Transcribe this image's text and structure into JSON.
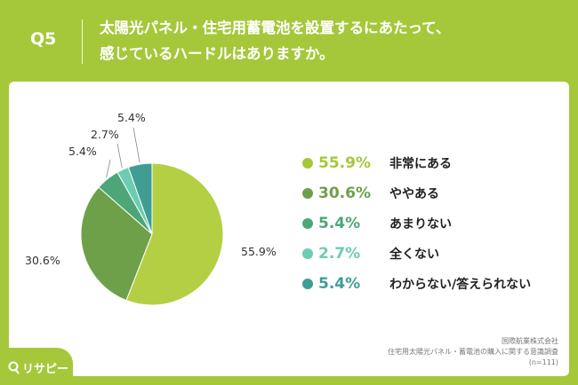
{
  "header": {
    "q_number": "Q5",
    "title_line1": "太陽光パネル・住宅用蓄電池を設置するにあたって、",
    "title_line2": "感じているハードルはありますか。"
  },
  "chart_data": {
    "type": "pie",
    "title": "太陽光パネル・住宅用蓄電池を設置するにあたって、感じているハードルはありますか。",
    "start_angle": "12 o'clock",
    "direction": "clockwise",
    "slices": [
      {
        "label": "非常にある",
        "value": 55.9,
        "display": "55.9%",
        "color": "#b5cf45"
      },
      {
        "label": "ややある",
        "value": 30.6,
        "display": "30.6%",
        "color": "#6ea04a"
      },
      {
        "label": "あまりない",
        "value": 5.4,
        "display": "5.4%",
        "color": "#4da678"
      },
      {
        "label": "全くない",
        "value": 2.7,
        "display": "2.7%",
        "color": "#6cccb2"
      },
      {
        "label": "わからない/答えられない",
        "value": 5.4,
        "display": "5.4%",
        "color": "#3f9d94"
      }
    ]
  },
  "legend": {
    "items": [
      {
        "value": "55.9%",
        "label": "非常にある",
        "color": "#a5c83a"
      },
      {
        "value": "30.6%",
        "label": "ややある",
        "color": "#6ea04a"
      },
      {
        "value": "5.4%",
        "label": "あまりない",
        "color": "#4da678"
      },
      {
        "value": "2.7%",
        "label": "全くない",
        "color": "#6cccb2"
      },
      {
        "value": "5.4%",
        "label": "わからない/答えられない",
        "color": "#3f9d94"
      }
    ]
  },
  "source": {
    "company": "国際航業株式会社",
    "survey": "住宅用太陽光パネル・蓄電池の購入に関する意識調査",
    "sample": "(n=111)"
  },
  "logo": {
    "text": "リサピー"
  }
}
